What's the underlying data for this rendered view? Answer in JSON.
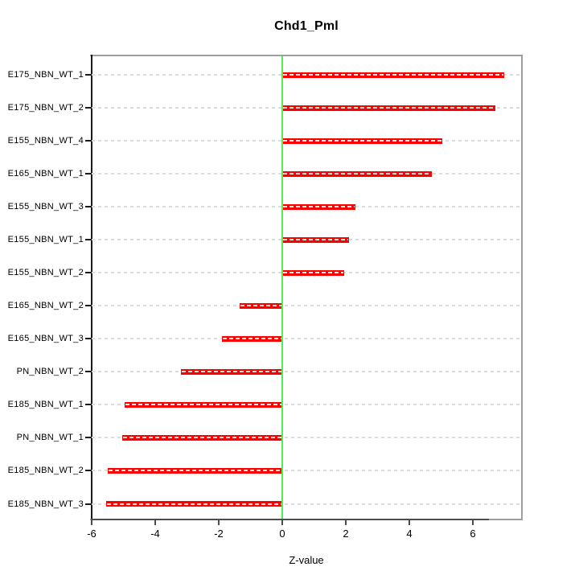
{
  "title": "Chd1_Pml",
  "xlabel": "Z-value",
  "colors": {
    "bar": "#ff0000",
    "bar_dash": "#ffffff",
    "zero_line": "#4df04d",
    "grid": "#dbdbdb",
    "box_gray": "#9e9e9e",
    "x_axis": "#4d4d4d",
    "y_axis": "#1a1a1a",
    "text": "#000000"
  },
  "chart_data": {
    "type": "bar",
    "orientation": "horizontal",
    "title": "Chd1_Pml",
    "xlabel": "Z-value",
    "ylabel": "",
    "categories": [
      "E175_NBN_WT_1",
      "E175_NBN_WT_2",
      "E155_NBN_WT_4",
      "E165_NBN_WT_1",
      "E155_NBN_WT_3",
      "E155_NBN_WT_1",
      "E155_NBN_WT_2",
      "E165_NBN_WT_2",
      "E165_NBN_WT_3",
      "PN_NBN_WT_2",
      "E185_NBN_WT_1",
      "PN_NBN_WT_1",
      "E185_NBN_WT_2",
      "E185_NBN_WT_3"
    ],
    "values": [
      7.0,
      6.7,
      5.05,
      4.7,
      2.3,
      2.1,
      1.95,
      -1.35,
      -1.9,
      -3.2,
      -4.95,
      -5.05,
      -5.5,
      -5.55
    ],
    "xlim": [
      -6,
      7.52
    ],
    "xticks": [
      -6,
      -4,
      -2,
      0,
      2,
      4,
      6
    ],
    "zero_reference_line": 0,
    "grid": "horizontal-dashed",
    "legend": "none",
    "bar_color": "#ff0000",
    "zero_line_color": "green"
  }
}
